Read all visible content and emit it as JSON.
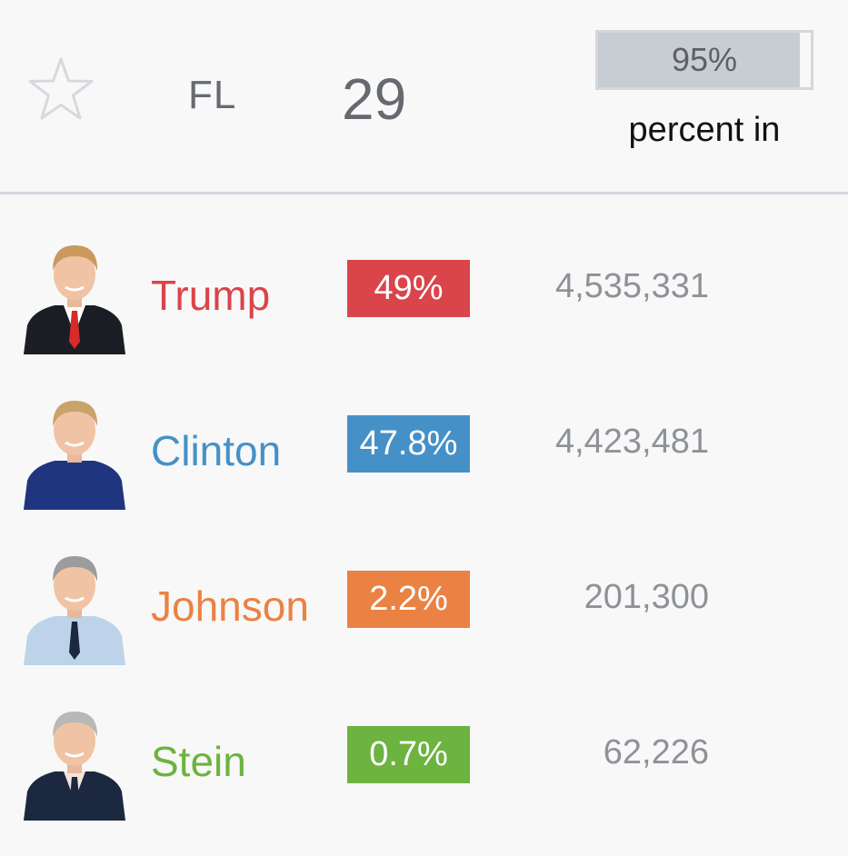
{
  "race": {
    "state": "FL",
    "electoral_votes": "29",
    "reporting": {
      "value_label": "95%",
      "fraction": 0.95,
      "caption": "percent in"
    },
    "favorite_icon": "star-outline-icon"
  },
  "candidates": [
    {
      "name": "Trump",
      "percent": "49%",
      "votes": "4,535,331",
      "color": "#d9454a",
      "photo_icon": "trump-portrait",
      "suit": "#1a1e24",
      "shirt": "#ffffff",
      "tie": "#d62b2b",
      "hair": "#c99a5b"
    },
    {
      "name": "Clinton",
      "percent": "47.8%",
      "votes": "4,423,481",
      "color": "#4591c7",
      "photo_icon": "clinton-portrait",
      "suit": "#1f3580",
      "shirt": "#1f3580",
      "tie": "#1f3580",
      "hair": "#c9a36a"
    },
    {
      "name": "Johnson",
      "percent": "2.2%",
      "votes": "201,300",
      "color": "#ea8244",
      "photo_icon": "johnson-portrait",
      "suit": "#bcd3ea",
      "shirt": "#bcd3ea",
      "tie": "#1c2740",
      "hair": "#9c9c9c"
    },
    {
      "name": "Stein",
      "percent": "0.7%",
      "votes": "62,226",
      "color": "#6db33f",
      "photo_icon": "stein-portrait",
      "suit": "#1c2840",
      "shirt": "#f2e6dc",
      "tie": "#1c2840",
      "hair": "#b8b8b8"
    }
  ]
}
